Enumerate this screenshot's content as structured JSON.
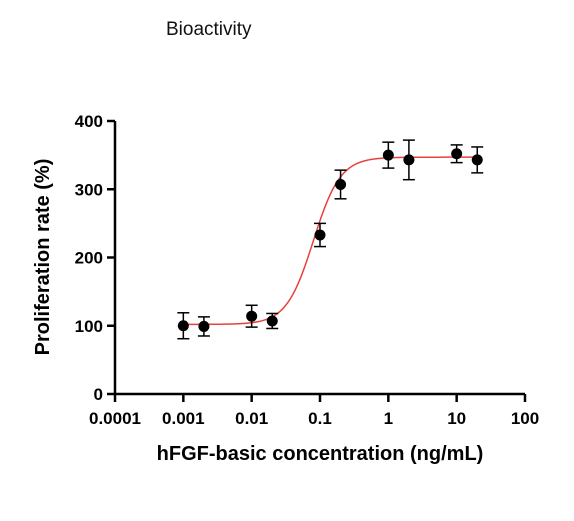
{
  "page": {
    "title": "Bioactivity"
  },
  "chart_data": {
    "type": "scatter",
    "title": "",
    "xlabel": "hFGF-basic concentration (ng/mL)",
    "ylabel": "Proliferation rate (%)",
    "xscale": "log",
    "xlim": [
      0.0001,
      100
    ],
    "ylim": [
      0,
      400
    ],
    "xticks": [
      0.0001,
      0.001,
      0.01,
      0.1,
      1,
      10,
      100
    ],
    "xtick_labels": [
      "0.0001",
      "0.001",
      "0.01",
      "0.1",
      "1",
      "10",
      "100"
    ],
    "yticks": [
      0,
      100,
      200,
      300,
      400
    ],
    "ytick_labels": [
      "0",
      "100",
      "200",
      "300",
      "400"
    ],
    "grid": false,
    "legend": "none",
    "marker_color": "#000000",
    "fit_color": "#e8413c",
    "points": [
      {
        "x": 0.001,
        "y": 100,
        "err": 19
      },
      {
        "x": 0.002,
        "y": 99,
        "err": 14
      },
      {
        "x": 0.01,
        "y": 114,
        "err": 16
      },
      {
        "x": 0.02,
        "y": 107,
        "err": 11
      },
      {
        "x": 0.1,
        "y": 233,
        "err": 17
      },
      {
        "x": 0.2,
        "y": 307,
        "err": 21
      },
      {
        "x": 1,
        "y": 350,
        "err": 19
      },
      {
        "x": 2,
        "y": 343,
        "err": 29
      },
      {
        "x": 10,
        "y": 352,
        "err": 13
      },
      {
        "x": 20,
        "y": 343,
        "err": 19
      }
    ],
    "fit": {
      "model": "4PL",
      "bottom": 102,
      "top": 347,
      "ec50": 0.08,
      "hill": 2.2
    }
  }
}
